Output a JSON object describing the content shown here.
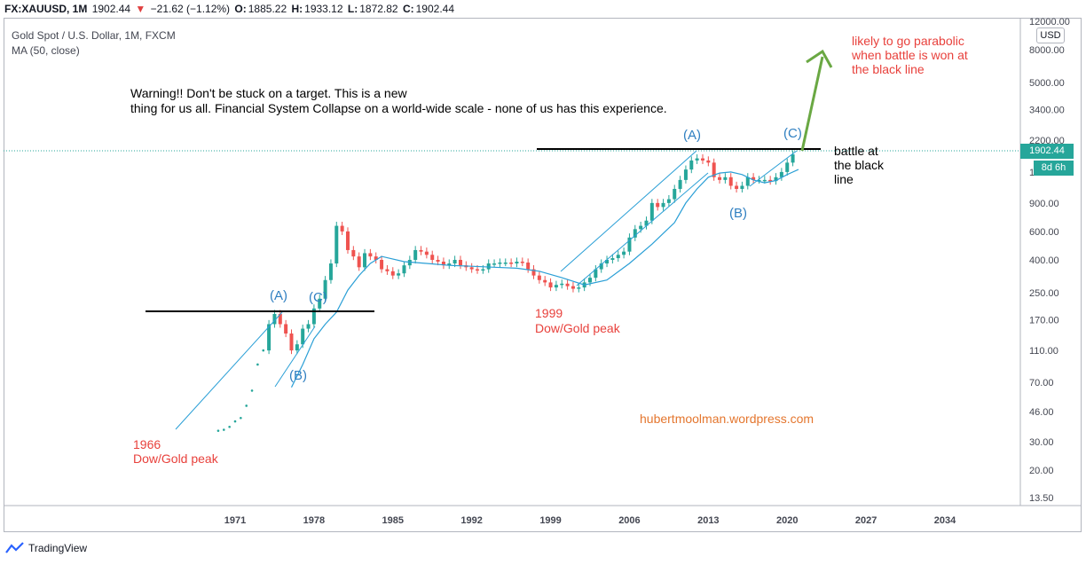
{
  "header": {
    "symbol": "FX:XAUUSD, 1M",
    "last": "1902.44",
    "change_arrow": "▼",
    "change": "−21.62 (−1.12%)",
    "o_label": "O:",
    "o_value": "1885.22",
    "h_label": "H:",
    "h_value": "1933.12",
    "l_label": "L:",
    "l_value": "1872.82",
    "c_label": "C:",
    "c_value": "1902.44"
  },
  "legend": {
    "title": "Gold Spot / U.S. Dollar, 1M, FXCM",
    "indicator": "MA (50, close)"
  },
  "price_axis": {
    "currency": "USD",
    "current_price": "1902.44",
    "countdown": "8d 6h"
  },
  "footer": {
    "brand": "TradingView"
  },
  "colors": {
    "up_candle": "#26a69a",
    "down_candle": "#ef5350",
    "ma_line": "#2a9fd6",
    "annotation_red": "#e8413c",
    "annotation_blue": "#2f7fc1",
    "arrow_green": "#6aa843",
    "watermark_orange": "#e4762e"
  },
  "chart_data": {
    "type": "line",
    "title": "Gold Spot / U.S. Dollar, 1M, FXCM",
    "y_scale": "log",
    "ylim": [
      13.5,
      12000
    ],
    "x_ticks": [
      "1971",
      "1978",
      "1985",
      "1992",
      "1999",
      "2006",
      "2013",
      "2020",
      "2027",
      "2034"
    ],
    "y_ticks": [
      "12000.00",
      "8000.00",
      "5000.00",
      "3400.00",
      "2200.00",
      "1400.00",
      "900.00",
      "600.00",
      "400.00",
      "250.00",
      "170.00",
      "110.00",
      "70.00",
      "46.00",
      "30.00",
      "20.00",
      "13.50"
    ],
    "series": [
      {
        "name": "",
        "x": [
          1969.5,
          1970,
          1970.5,
          1971,
          1971.5,
          1972,
          1972.5,
          1973,
          1973.5,
          1974,
          1974.5,
          1975,
          1975.5,
          1976,
          1976.5,
          1977,
          1977.5,
          1978,
          1978.5,
          1979,
          1979.5,
          1980,
          1980.5,
          1981,
          1981.5,
          1982,
          1982.5,
          1983,
          1983.5,
          1984,
          1984.5,
          1985,
          1985.5,
          1986,
          1986.5,
          1987,
          1987.5,
          1988,
          1988.5,
          1989,
          1989.5,
          1990,
          1990.5,
          1991,
          1991.5,
          1992,
          1992.5,
          1993,
          1993.5,
          1994,
          1994.5,
          1995,
          1995.5,
          1996,
          1996.5,
          1997,
          1997.5,
          1998,
          1998.5,
          1999,
          1999.5,
          2000,
          2000.5,
          2001,
          2001.5,
          2002,
          2002.5,
          2003,
          2003.5,
          2004,
          2004.5,
          2005,
          2005.5,
          2006,
          2006.5,
          2007,
          2007.5,
          2008,
          2008.5,
          2009,
          2009.5,
          2010,
          2010.5,
          2011,
          2011.5,
          2012,
          2012.5,
          2013,
          2013.5,
          2014,
          2014.5,
          2015,
          2015.5,
          2016,
          2016.5,
          2017,
          2017.5,
          2018,
          2018.5,
          2019,
          2019.5,
          2020,
          2020.5
        ],
        "values": [
          35,
          35.5,
          37,
          40,
          42,
          50,
          62,
          90,
          110,
          160,
          185,
          160,
          140,
          110,
          120,
          150,
          160,
          200,
          230,
          300,
          380,
          650,
          600,
          460,
          420,
          360,
          440,
          420,
          400,
          350,
          340,
          320,
          330,
          370,
          400,
          460,
          450,
          430,
          400,
          390,
          370,
          380,
          400,
          370,
          360,
          350,
          345,
          350,
          380,
          380,
          385,
          385,
          380,
          390,
          385,
          350,
          320,
          300,
          290,
          270,
          280,
          285,
          275,
          265,
          270,
          290,
          310,
          350,
          380,
          400,
          410,
          430,
          450,
          550,
          620,
          650,
          700,
          900,
          850,
          900,
          950,
          1100,
          1250,
          1450,
          1650,
          1700,
          1650,
          1600,
          1300,
          1250,
          1300,
          1150,
          1100,
          1150,
          1300,
          1250,
          1250,
          1250,
          1230,
          1300,
          1400,
          1600,
          1800
        ]
      },
      {
        "name": "MA (50, close)",
        "x": [
          1976,
          1977,
          1978,
          1979,
          1980,
          1981,
          1982,
          1983,
          1984,
          1986,
          1988,
          1990,
          1992,
          1994,
          1996,
          1998,
          2000,
          2002,
          2004,
          2006,
          2008,
          2010,
          2011,
          2012,
          2013,
          2014,
          2015,
          2016,
          2017,
          2018,
          2019,
          2020,
          2021
        ],
        "values": [
          65,
          90,
          130,
          160,
          190,
          260,
          320,
          380,
          420,
          390,
          380,
          370,
          365,
          360,
          355,
          340,
          310,
          280,
          300,
          380,
          500,
          680,
          900,
          1100,
          1300,
          1380,
          1400,
          1350,
          1250,
          1200,
          1240,
          1350,
          1450
        ]
      }
    ],
    "annotations": [
      {
        "text": "Warning!! Don't be stuck on a target. This is a new"
      },
      {
        "text": "thing for us all. Financial System Collapse on a world-wide scale - none of us has this experience."
      },
      {
        "text": "likely to go parabolic"
      },
      {
        "text": "when battle is won at"
      },
      {
        "text": "the black line"
      },
      {
        "text": "battle at"
      },
      {
        "text": "the black"
      },
      {
        "text": "line"
      },
      {
        "text": "1999"
      },
      {
        "text": "Dow/Gold peak"
      },
      {
        "text": "1966"
      },
      {
        "text": "Dow/Gold peak"
      },
      {
        "text": "(A)"
      },
      {
        "text": "(C)"
      },
      {
        "text": "(B)"
      },
      {
        "text": "(A)"
      },
      {
        "text": "(B)"
      },
      {
        "text": "(C)"
      },
      {
        "text": "hubertmoolman.wordpress.com"
      }
    ]
  }
}
